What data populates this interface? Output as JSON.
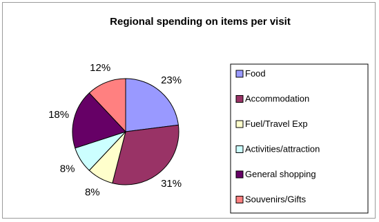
{
  "chart_data": {
    "type": "pie",
    "title": "Regional spending on items per visit",
    "categories": [
      "Food",
      "Accommodation",
      "Fuel/Travel Exp",
      "Activities/attraction",
      "General shopping",
      "Souvenirs/Gifts"
    ],
    "values": [
      23,
      31,
      8,
      8,
      18,
      12
    ],
    "data_labels": [
      "23%",
      "31%",
      "8%",
      "8%",
      "18%",
      "12%"
    ],
    "colors": [
      "#9999FF",
      "#993366",
      "#FFFFCC",
      "#CCFFFF",
      "#660066",
      "#FF8080"
    ],
    "legend_position": "right"
  }
}
